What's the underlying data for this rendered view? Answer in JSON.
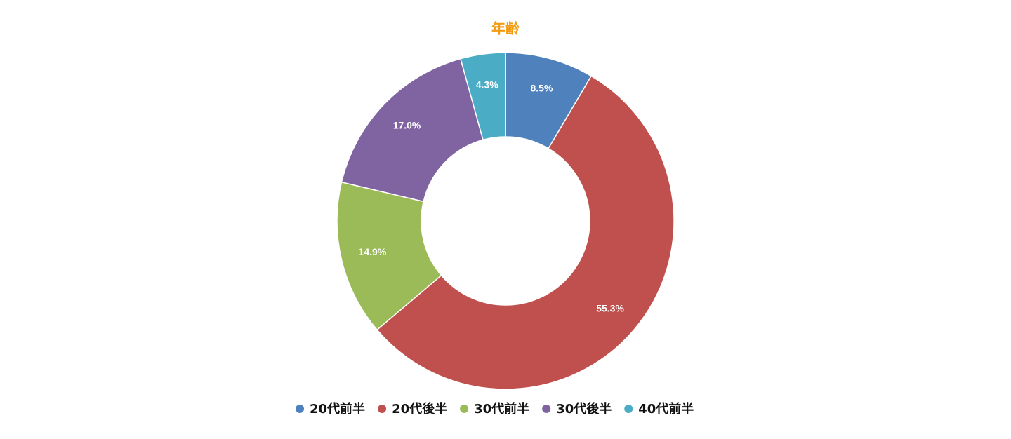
{
  "chart_data": {
    "type": "donut",
    "title": "年齢",
    "categories": [
      "20代前半",
      "20代後半",
      "30代前半",
      "30代後半",
      "40代前半"
    ],
    "values": [
      8.5,
      55.3,
      14.9,
      17.0,
      4.3
    ],
    "value_labels": [
      "8.5%",
      "55.3%",
      "14.9%",
      "17.0%",
      "4.3%"
    ],
    "colors": [
      "#4f81bd",
      "#c0504d",
      "#9bbb59",
      "#8064a2",
      "#4bacc6"
    ],
    "title_color": "#f39c12",
    "legend": "bottom"
  }
}
